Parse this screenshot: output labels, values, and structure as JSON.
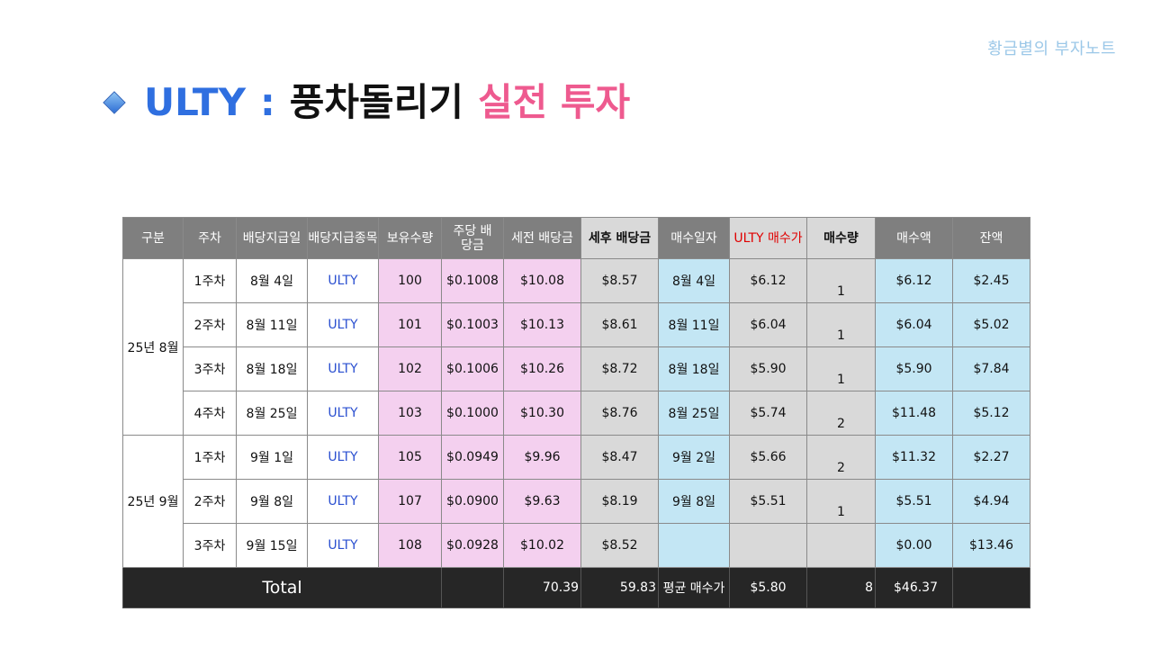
{
  "brand": "황금별의 부자노트",
  "title": {
    "part1": "ULTY",
    "sep": ":",
    "part2": "풍차돌리기",
    "part3": "실전 투자"
  },
  "headers": [
    "구분",
    "주차",
    "배당지급일",
    "배당지급종목",
    "보유수량",
    "주당 배당금",
    "세전 배당금",
    "세후 배당금",
    "매수일자",
    "ULTY 매수가",
    "매수량",
    "매수액",
    "잔액"
  ],
  "groups": [
    {
      "label": "25년 8월",
      "rows": [
        {
          "week": "1주차",
          "pay_date": "8월 4일",
          "ticker": "ULTY",
          "shares": "100",
          "dps": "$0.1008",
          "pretax": "$10.08",
          "aftertax": "$8.57",
          "buy_date": "8월 4일",
          "price": "$6.12",
          "qty": "1",
          "amount": "$6.12",
          "balance": "$2.45"
        },
        {
          "week": "2주차",
          "pay_date": "8월 11일",
          "ticker": "ULTY",
          "shares": "101",
          "dps": "$0.1003",
          "pretax": "$10.13",
          "aftertax": "$8.61",
          "buy_date": "8월 11일",
          "price": "$6.04",
          "qty": "1",
          "amount": "$6.04",
          "balance": "$5.02"
        },
        {
          "week": "3주차",
          "pay_date": "8월 18일",
          "ticker": "ULTY",
          "shares": "102",
          "dps": "$0.1006",
          "pretax": "$10.26",
          "aftertax": "$8.72",
          "buy_date": "8월 18일",
          "price": "$5.90",
          "qty": "1",
          "amount": "$5.90",
          "balance": "$7.84"
        },
        {
          "week": "4주차",
          "pay_date": "8월 25일",
          "ticker": "ULTY",
          "shares": "103",
          "dps": "$0.1000",
          "pretax": "$10.30",
          "aftertax": "$8.76",
          "buy_date": "8월 25일",
          "price": "$5.74",
          "qty": "2",
          "amount": "$11.48",
          "balance": "$5.12"
        }
      ]
    },
    {
      "label": "25년 9월",
      "rows": [
        {
          "week": "1주차",
          "pay_date": "9월 1일",
          "ticker": "ULTY",
          "shares": "105",
          "dps": "$0.0949",
          "pretax": "$9.96",
          "aftertax": "$8.47",
          "buy_date": "9월 2일",
          "price": "$5.66",
          "qty": "2",
          "amount": "$11.32",
          "balance": "$2.27"
        },
        {
          "week": "2주차",
          "pay_date": "9월 8일",
          "ticker": "ULTY",
          "shares": "107",
          "dps": "$0.0900",
          "pretax": "$9.63",
          "aftertax": "$8.19",
          "buy_date": "9월 8일",
          "price": "$5.51",
          "qty": "1",
          "amount": "$5.51",
          "balance": "$4.94"
        },
        {
          "week": "3주차",
          "pay_date": "9월 15일",
          "ticker": "ULTY",
          "shares": "108",
          "dps": "$0.0928",
          "pretax": "$10.02",
          "aftertax": "$8.52",
          "buy_date": "",
          "price": "",
          "qty": "",
          "amount": "$0.00",
          "balance": "$13.46"
        }
      ]
    }
  ],
  "total": {
    "label": "Total",
    "pretax": "70.39",
    "aftertax": "59.83",
    "avg_label": "평균 매수가",
    "avg_price": "$5.80",
    "qty": "8",
    "amount": "$46.37",
    "balance": ""
  },
  "colors": {
    "header": "#7f7f7f",
    "pink": "#f4d0ef",
    "gray": "#d9d9d9",
    "blue": "#c3e6f4",
    "footer": "#262626",
    "title_blue": "#2f6fe0",
    "title_pink": "#ee5a8f",
    "ticker": "#2a4fd0",
    "red_header": "#e00000"
  }
}
